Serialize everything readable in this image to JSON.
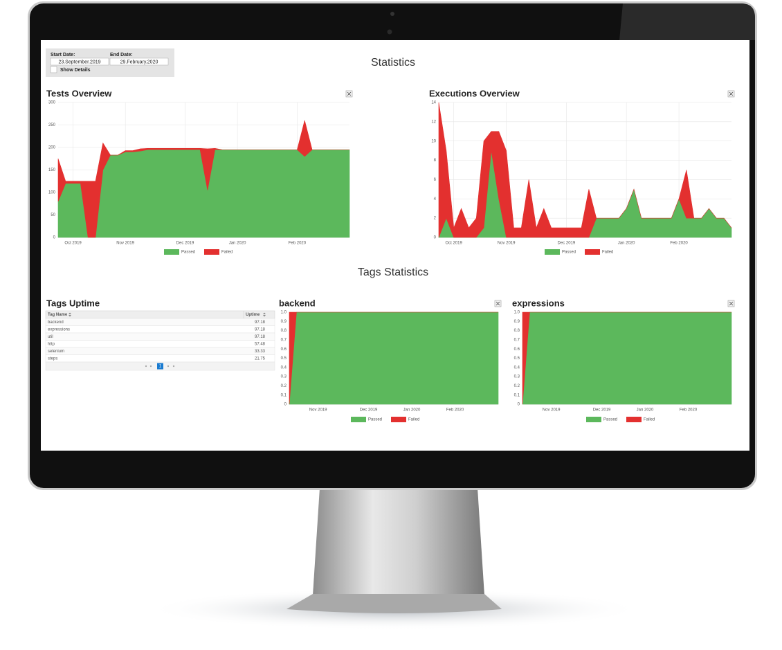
{
  "filters": {
    "start_label": "Start Date:",
    "start_value": "23.September.2019",
    "end_label": "End Date:",
    "end_value": "29.February.2020",
    "show_details": "Show Details"
  },
  "title": "Statistics",
  "chart_data": [
    {
      "type": "area",
      "title": "Tests Overview",
      "stacked": true,
      "grid": true,
      "legend": "bottom",
      "categories": [
        null,
        null,
        "Oct 2019",
        null,
        null,
        null,
        null,
        null,
        null,
        "Nov 2019",
        null,
        null,
        null,
        null,
        null,
        null,
        null,
        "Dec 2019",
        null,
        null,
        null,
        null,
        null,
        null,
        "Jan 2020",
        null,
        null,
        null,
        null,
        null,
        null,
        null,
        "Feb 2020",
        null,
        null,
        null,
        null,
        null,
        null,
        null
      ],
      "series": [
        {
          "name": "Passed",
          "color": "#5cb85c",
          "values": [
            80,
            120,
            120,
            120,
            0,
            0,
            150,
            183,
            183,
            190,
            190,
            192,
            195,
            195,
            195,
            195,
            195,
            195,
            195,
            195,
            105,
            195,
            195,
            195,
            195,
            195,
            195,
            195,
            195,
            195,
            195,
            195,
            195,
            180,
            195,
            195,
            195,
            195,
            195,
            195
          ]
        },
        {
          "name": "Failed",
          "color": "#e3302f",
          "values": [
            95,
            5,
            5,
            5,
            125,
            125,
            60,
            0,
            0,
            3,
            3,
            5,
            3,
            3,
            3,
            3,
            3,
            3,
            3,
            3,
            92,
            3,
            0,
            0,
            0,
            0,
            0,
            0,
            0,
            0,
            0,
            0,
            0,
            80,
            0,
            0,
            0,
            0,
            0,
            0
          ]
        }
      ],
      "ylim": [
        0,
        300
      ],
      "yticks": [
        0,
        50,
        100,
        150,
        200,
        250,
        300
      ]
    },
    {
      "type": "area",
      "title": "Executions Overview",
      "stacked": true,
      "grid": true,
      "legend": "bottom",
      "categories": [
        null,
        null,
        "Oct 2019",
        null,
        null,
        null,
        null,
        null,
        null,
        "Nov 2019",
        null,
        null,
        null,
        null,
        null,
        null,
        null,
        "Dec 2019",
        null,
        null,
        null,
        null,
        null,
        null,
        null,
        "Jan 2020",
        null,
        null,
        null,
        null,
        null,
        null,
        "Feb 2020",
        null,
        null,
        null,
        null,
        null,
        null,
        null
      ],
      "series": [
        {
          "name": "Passed",
          "color": "#5cb85c",
          "values": [
            0,
            2,
            0,
            0,
            0,
            0,
            1,
            9,
            4,
            0,
            0,
            0,
            0,
            0,
            0,
            0,
            0,
            0,
            0,
            0,
            0,
            2,
            2,
            2,
            2,
            3,
            5,
            2,
            2,
            2,
            2,
            2,
            4,
            2,
            2,
            2,
            3,
            2,
            2,
            1
          ]
        },
        {
          "name": "Failed",
          "color": "#e3302f",
          "values": [
            14,
            7,
            1,
            3,
            1,
            2,
            9,
            2,
            7,
            9,
            1,
            1,
            6,
            1,
            3,
            1,
            1,
            1,
            1,
            1,
            5,
            0,
            0,
            0,
            0,
            0,
            0,
            0,
            0,
            0,
            0,
            0,
            0,
            5,
            0,
            0,
            0,
            0,
            0,
            0
          ]
        }
      ],
      "ylim": [
        0,
        14
      ],
      "yticks": [
        0,
        2,
        4,
        6,
        8,
        10,
        12,
        14
      ]
    },
    {
      "type": "area",
      "title": "backend",
      "stacked": true,
      "grid": true,
      "legend": "bottom",
      "categories": [
        null,
        null,
        null,
        null,
        "Nov 2019",
        null,
        null,
        null,
        null,
        null,
        null,
        "Dec 2019",
        null,
        null,
        null,
        null,
        null,
        "Jan 2020",
        null,
        null,
        null,
        null,
        null,
        "Feb 2020",
        null,
        null,
        null,
        null,
        null,
        null
      ],
      "series": [
        {
          "name": "Passed",
          "color": "#5cb85c",
          "values": [
            0,
            1,
            1,
            1,
            1,
            1,
            1,
            1,
            1,
            1,
            1,
            1,
            1,
            1,
            1,
            1,
            1,
            1,
            1,
            1,
            1,
            1,
            1,
            1,
            1,
            1,
            1,
            1,
            1,
            1
          ]
        },
        {
          "name": "Failed",
          "color": "#e3302f",
          "values": [
            1,
            0,
            0,
            0,
            0,
            0,
            0,
            0,
            0,
            0,
            0,
            0,
            0,
            0,
            0,
            0,
            0,
            0,
            0,
            0,
            0,
            0,
            0,
            0,
            0,
            0,
            0,
            0,
            0,
            0
          ]
        }
      ],
      "ylim": [
        0,
        1
      ],
      "yticks": [
        0,
        0.1,
        0.2,
        0.3,
        0.4,
        0.5,
        0.6,
        0.7,
        0.8,
        0.9,
        {
          "value": 1,
          "label": "1.0"
        }
      ]
    },
    {
      "type": "area",
      "title": "expressions",
      "stacked": true,
      "grid": true,
      "legend": "bottom",
      "categories": [
        null,
        null,
        null,
        null,
        "Nov 2019",
        null,
        null,
        null,
        null,
        null,
        null,
        "Dec 2019",
        null,
        null,
        null,
        null,
        null,
        "Jan 2020",
        null,
        null,
        null,
        null,
        null,
        "Feb 2020",
        null,
        null,
        null,
        null,
        null,
        null
      ],
      "series": [
        {
          "name": "Passed",
          "color": "#5cb85c",
          "values": [
            0,
            1,
            1,
            1,
            1,
            1,
            1,
            1,
            1,
            1,
            1,
            1,
            1,
            1,
            1,
            1,
            1,
            1,
            1,
            1,
            1,
            1,
            1,
            1,
            1,
            1,
            1,
            1,
            1,
            1
          ]
        },
        {
          "name": "Failed",
          "color": "#e3302f",
          "values": [
            1,
            0,
            0,
            0,
            0,
            0,
            0,
            0,
            0,
            0,
            0,
            0,
            0,
            0,
            0,
            0,
            0,
            0,
            0,
            0,
            0,
            0,
            0,
            0,
            0,
            0,
            0,
            0,
            0,
            0
          ]
        }
      ],
      "ylim": [
        0,
        1
      ],
      "yticks": [
        0,
        0.1,
        0.2,
        0.3,
        0.4,
        0.5,
        0.6,
        0.7,
        0.8,
        0.9,
        {
          "value": 1,
          "label": "1.0"
        }
      ]
    }
  ],
  "tags_title": "Tags Statistics",
  "tags_uptime": {
    "title": "Tags Uptime",
    "columns": [
      "Tag Name",
      "Uptime"
    ],
    "rows": [
      [
        "backend",
        97.18
      ],
      [
        "expressions",
        97.18
      ],
      [
        "util",
        97.18
      ],
      [
        "http",
        57.48
      ],
      [
        "selenium",
        33.33
      ],
      [
        "steps",
        21.75
      ]
    ],
    "pages": [
      1
    ]
  }
}
